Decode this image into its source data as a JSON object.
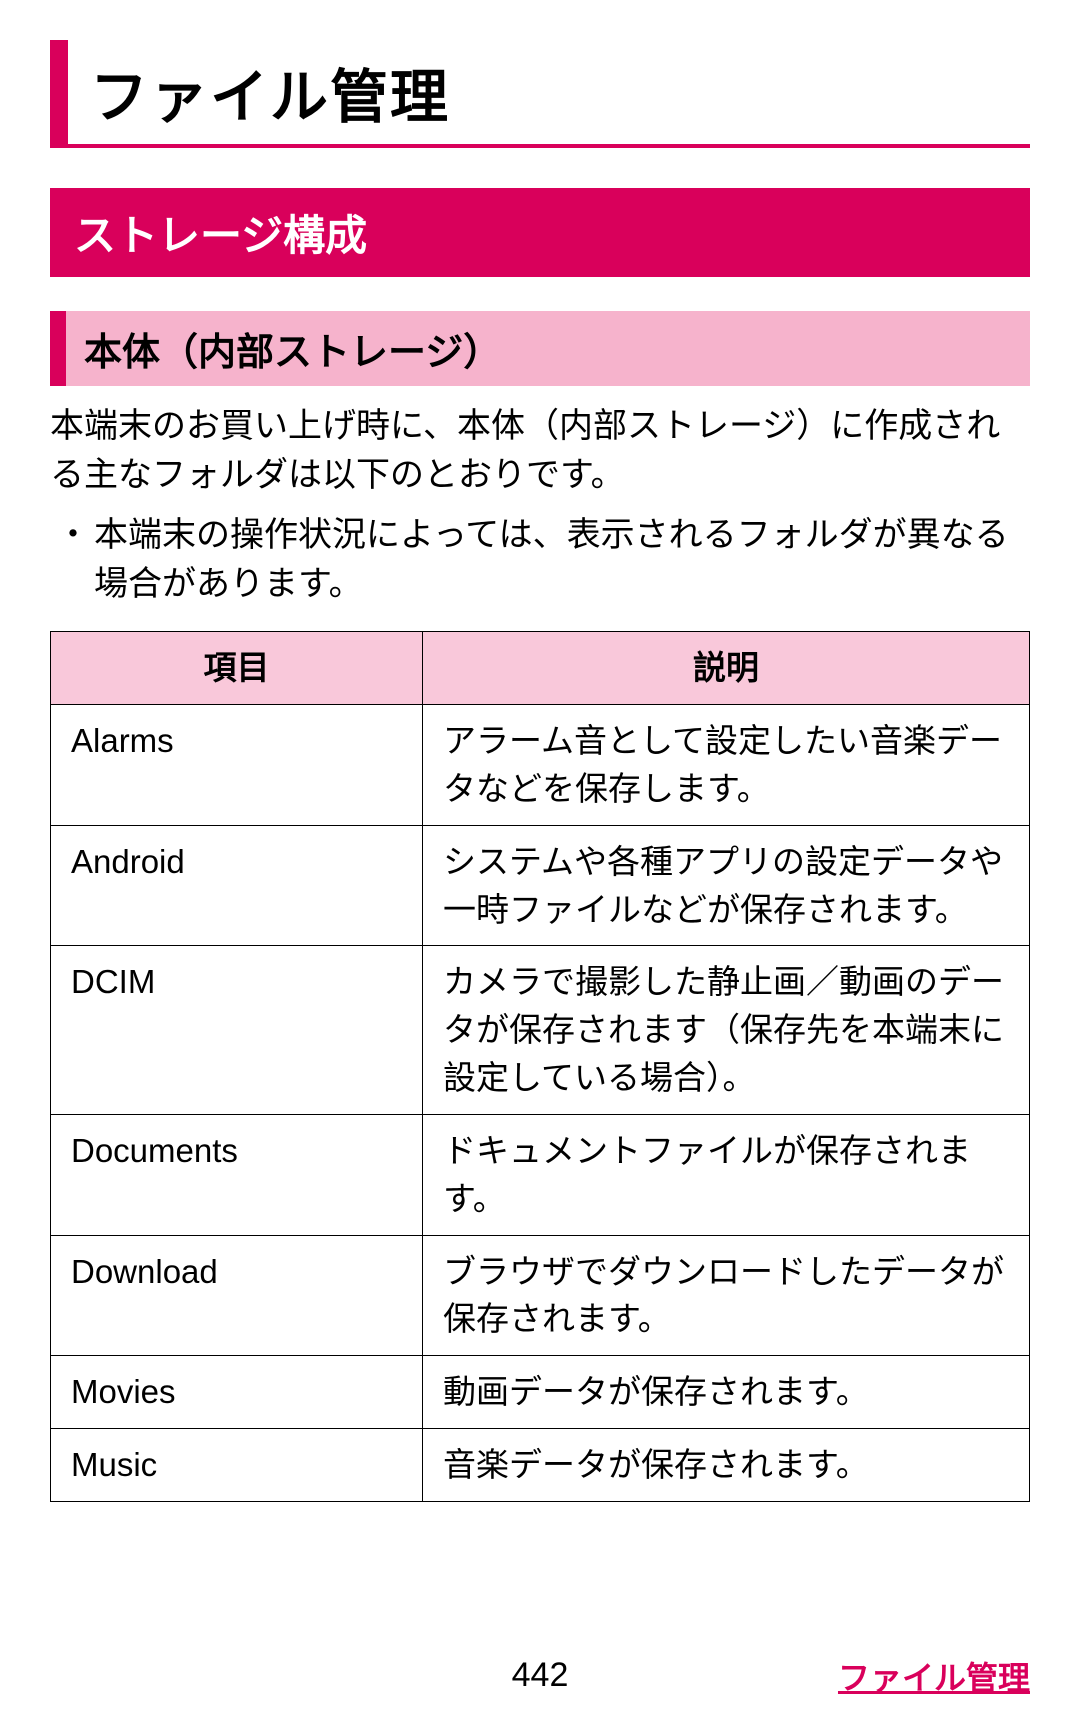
{
  "colors": {
    "accent": "#d9005b",
    "sub_bg": "#f6b3cc",
    "header_bg": "#f9c8da"
  },
  "title": "ファイル管理",
  "section": "ストレージ構成",
  "subsection": "本体（内部ストレージ）",
  "paragraph": "本端末のお買い上げ時に、本体（内部ストレージ）に作成される主なフォルダは以下のとおりです。",
  "bullet": "本端末の操作状況によっては、表示されるフォルダが異なる場合があります。",
  "table": {
    "columns": [
      "項目",
      "説明"
    ],
    "rows": [
      [
        "Alarms",
        "アラーム音として設定したい音楽データなどを保存します。"
      ],
      [
        "Android",
        "システムや各種アプリの設定データや一時ファイルなどが保存されます。"
      ],
      [
        "DCIM",
        "カメラで撮影した静止画／動画のデータが保存されます（保存先を本端末に設定している場合）。"
      ],
      [
        "Documents",
        "ドキュメントファイルが保存されます。"
      ],
      [
        "Download",
        "ブラウザでダウンロードしたデータが保存されます。"
      ],
      [
        "Movies",
        "動画データが保存されます。"
      ],
      [
        "Music",
        "音楽データが保存されます。"
      ]
    ]
  },
  "page_number": "442",
  "footer_link": "ファイル管理"
}
